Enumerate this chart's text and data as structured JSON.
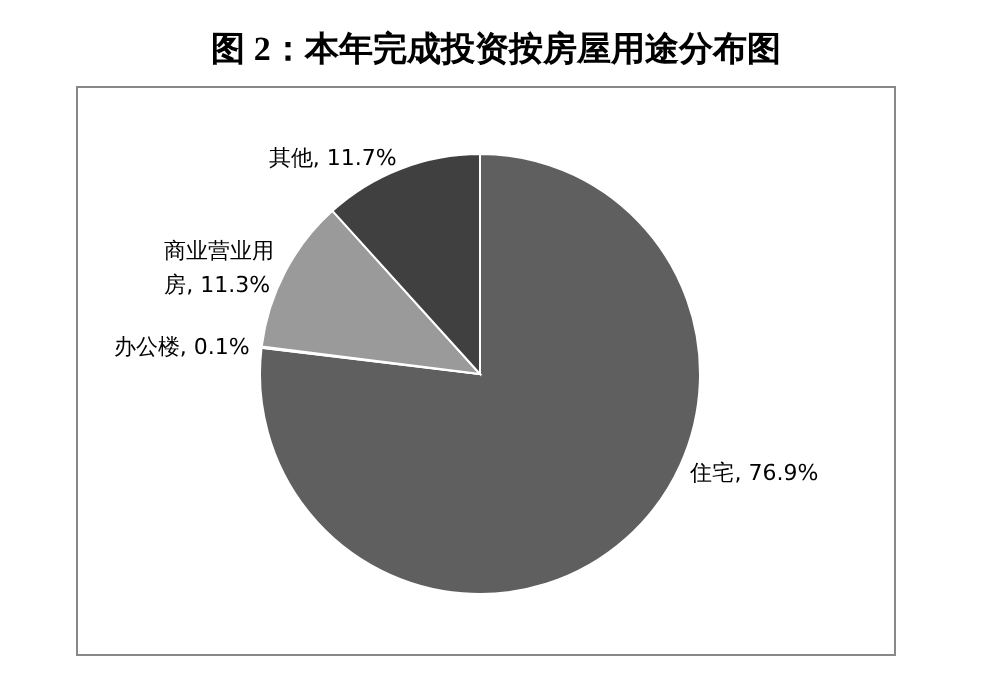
{
  "chart_data": {
    "type": "pie",
    "title": "图 2：本年完成投资按房屋用途分布图",
    "categories": [
      "住宅",
      "办公楼",
      "商业营业用房",
      "其他"
    ],
    "values": [
      76.9,
      0.1,
      11.3,
      11.7
    ],
    "value_labels": [
      ", 76.9%",
      ", 0.1%",
      ", 11.3%",
      ", 11.7%"
    ],
    "colors": [
      "#5f5f5f",
      "#7f7f7f",
      "#9a9a9a",
      "#404040"
    ]
  }
}
